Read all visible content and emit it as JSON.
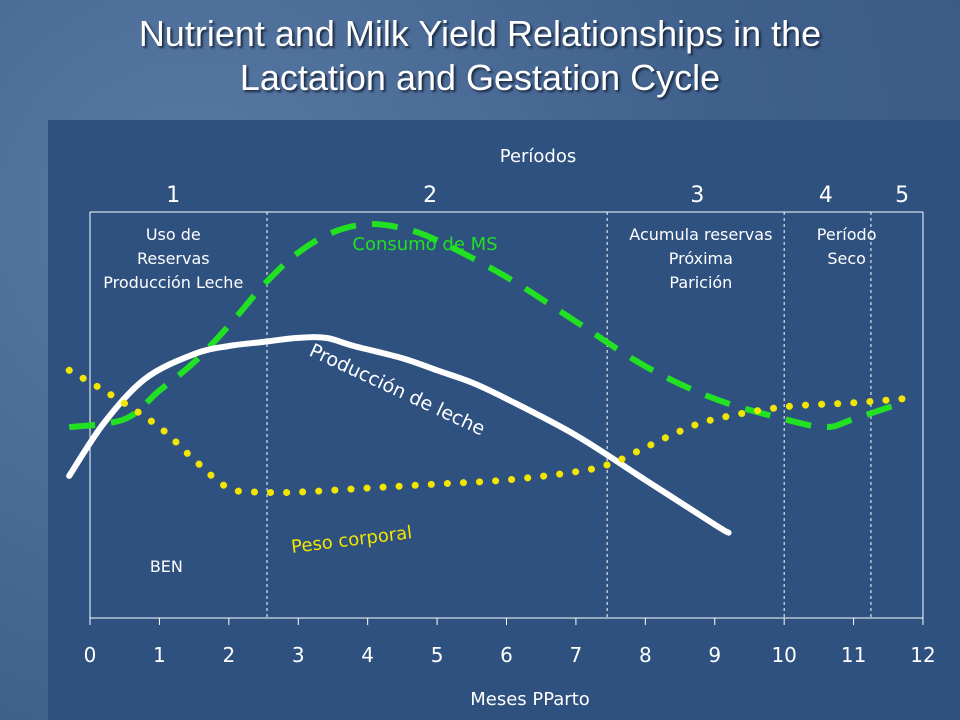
{
  "slide": {
    "title_line1": "Nutrient and Milk Yield Relationships in the",
    "title_line2": "Lactation and Gestation Cycle"
  },
  "chart_data": {
    "type": "line",
    "title": "",
    "periods_label": "Períodos",
    "xlabel": "Meses PParto",
    "xlim": [
      0,
      12
    ],
    "x_ticks": [
      "0",
      "1",
      "2",
      "3",
      "4",
      "5",
      "6",
      "7",
      "8",
      "9",
      "10",
      "11",
      "12"
    ],
    "period_boundaries": [
      2.55,
      7.45,
      10.0,
      11.25
    ],
    "periods": [
      {
        "number": "1",
        "x": 1.2
      },
      {
        "number": "2",
        "x": 4.9
      },
      {
        "number": "3",
        "x": 8.75
      },
      {
        "number": "4",
        "x": 10.6
      },
      {
        "number": "5",
        "x": 11.7
      }
    ],
    "period_notes": [
      {
        "x": 1.2,
        "lines": [
          "Uso de",
          "Reservas",
          "Producción Leche"
        ]
      },
      {
        "x": 8.8,
        "lines": [
          "Acumula reservas",
          "Próxima",
          "Parición"
        ]
      },
      {
        "x": 10.9,
        "lines": [
          "Período",
          "Seco"
        ]
      }
    ],
    "ben_label": "BEN",
    "series": [
      {
        "name": "Consumo de MS",
        "color": "#22e022",
        "style": "dashed",
        "x": [
          -0.3,
          0.5,
          1.0,
          1.5,
          2.0,
          2.5,
          3.0,
          3.5,
          4.0,
          4.5,
          5.0,
          6.0,
          7.0,
          8.0,
          9.0,
          10.0,
          10.6,
          11.0,
          11.7
        ],
        "y": [
          0.47,
          0.49,
          0.56,
          0.63,
          0.72,
          0.82,
          0.9,
          0.95,
          0.97,
          0.96,
          0.93,
          0.84,
          0.73,
          0.62,
          0.54,
          0.49,
          0.47,
          0.49,
          0.53
        ]
      },
      {
        "name": "Producción de leche",
        "color": "#ffffff",
        "style": "solid",
        "x": [
          -0.3,
          0.2,
          0.8,
          1.5,
          2.0,
          2.5,
          3.0,
          3.4,
          3.8,
          4.5,
          5.0,
          5.5,
          6.0,
          7.0,
          8.0,
          9.0,
          9.2
        ],
        "y": [
          0.35,
          0.48,
          0.59,
          0.65,
          0.67,
          0.68,
          0.69,
          0.69,
          0.67,
          0.64,
          0.61,
          0.58,
          0.54,
          0.45,
          0.34,
          0.23,
          0.21
        ]
      },
      {
        "name": "Peso corporal",
        "color": "#f2e600",
        "style": "dotted",
        "x": [
          -0.3,
          0.3,
          1.0,
          1.5,
          2.0,
          2.5,
          3.0,
          4.0,
          5.0,
          6.0,
          7.0,
          7.5,
          8.0,
          8.5,
          9.0,
          10.0,
          11.0,
          11.7
        ],
        "y": [
          0.61,
          0.55,
          0.47,
          0.39,
          0.32,
          0.31,
          0.31,
          0.32,
          0.33,
          0.34,
          0.36,
          0.38,
          0.42,
          0.46,
          0.49,
          0.52,
          0.53,
          0.54
        ]
      }
    ]
  }
}
